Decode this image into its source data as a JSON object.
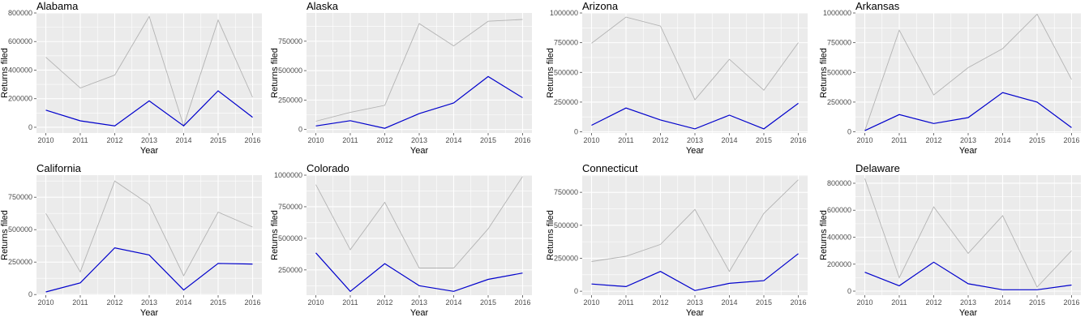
{
  "style": {
    "panel_bg": "#ebebeb",
    "grid_major": "#ffffff",
    "tick_color": "#4d4d4d",
    "series_colors": {
      "gray": "#b3b3b3",
      "blue": "#0000cc"
    }
  },
  "chart_data": [
    {
      "type": "line",
      "title": "Alabama",
      "xlabel": "Year",
      "ylabel": "Returns filed",
      "x": [
        2010,
        2011,
        2012,
        2013,
        2014,
        2015,
        2016
      ],
      "ylim": [
        -40000,
        800000
      ],
      "yticks": [
        0,
        200000,
        400000,
        600000,
        800000
      ],
      "ytick_labels": [
        "0",
        "200000",
        "400000",
        "600000",
        "800000"
      ],
      "grid": true,
      "series": [
        {
          "color": "gray",
          "values": [
            490000,
            275000,
            365000,
            775000,
            10000,
            750000,
            210000
          ]
        },
        {
          "color": "blue",
          "values": [
            120000,
            45000,
            10000,
            185000,
            10000,
            255000,
            70000
          ]
        }
      ]
    },
    {
      "type": "line",
      "title": "Alaska",
      "xlabel": "Year",
      "ylabel": "Returns filed",
      "x": [
        2010,
        2011,
        2012,
        2013,
        2014,
        2015,
        2016
      ],
      "ylim": [
        -30000,
        990000
      ],
      "yticks": [
        0,
        250000,
        500000,
        750000
      ],
      "ytick_labels": [
        "0",
        "250000",
        "500000",
        "750000"
      ],
      "grid": true,
      "series": [
        {
          "color": "gray",
          "values": [
            70000,
            145000,
            205000,
            900000,
            710000,
            920000,
            935000
          ]
        },
        {
          "color": "blue",
          "values": [
            30000,
            75000,
            10000,
            135000,
            225000,
            450000,
            270000
          ]
        }
      ]
    },
    {
      "type": "line",
      "title": "Arizona",
      "xlabel": "Year",
      "ylabel": "Returns filed",
      "x": [
        2010,
        2011,
        2012,
        2013,
        2014,
        2015,
        2016
      ],
      "ylim": [
        -10000,
        1000000
      ],
      "yticks": [
        0,
        250000,
        500000,
        750000,
        1000000
      ],
      "ytick_labels": [
        "0",
        "250000",
        "500000",
        "750000",
        "1000000"
      ],
      "grid": true,
      "series": [
        {
          "color": "gray",
          "values": [
            745000,
            965000,
            890000,
            270000,
            610000,
            350000,
            750000
          ]
        },
        {
          "color": "blue",
          "values": [
            55000,
            200000,
            100000,
            25000,
            140000,
            25000,
            240000
          ]
        }
      ]
    },
    {
      "type": "line",
      "title": "Arkansas",
      "xlabel": "Year",
      "ylabel": "Returns filed",
      "x": [
        2010,
        2011,
        2012,
        2013,
        2014,
        2015,
        2016
      ],
      "ylim": [
        -10000,
        1000000
      ],
      "yticks": [
        0,
        250000,
        500000,
        750000,
        1000000
      ],
      "ytick_labels": [
        "0",
        "250000",
        "500000",
        "750000",
        "1000000"
      ],
      "grid": true,
      "series": [
        {
          "color": "gray",
          "values": [
            10000,
            855000,
            310000,
            540000,
            700000,
            990000,
            440000
          ]
        },
        {
          "color": "blue",
          "values": [
            10000,
            145000,
            70000,
            120000,
            330000,
            250000,
            35000
          ]
        }
      ]
    },
    {
      "type": "line",
      "title": "California",
      "xlabel": "Year",
      "ylabel": "Returns filed",
      "x": [
        2010,
        2011,
        2012,
        2013,
        2014,
        2015,
        2016
      ],
      "ylim": [
        -5000,
        920000
      ],
      "yticks": [
        0,
        250000,
        500000,
        750000
      ],
      "ytick_labels": [
        "0",
        "250000",
        "500000",
        "750000"
      ],
      "grid": true,
      "series": [
        {
          "color": "gray",
          "values": [
            625000,
            175000,
            875000,
            695000,
            145000,
            635000,
            520000
          ]
        },
        {
          "color": "blue",
          "values": [
            20000,
            90000,
            360000,
            305000,
            35000,
            240000,
            235000
          ]
        }
      ]
    },
    {
      "type": "line",
      "title": "Colorado",
      "xlabel": "Year",
      "ylabel": "Returns filed",
      "x": [
        2010,
        2011,
        2012,
        2013,
        2014,
        2015,
        2016
      ],
      "ylim": [
        50000,
        1000000
      ],
      "yticks": [
        250000,
        500000,
        750000,
        1000000
      ],
      "ytick_labels": [
        "250000",
        "500000",
        "750000",
        "1000000"
      ],
      "grid": true,
      "series": [
        {
          "color": "gray",
          "values": [
            925000,
            410000,
            785000,
            265000,
            265000,
            575000,
            990000
          ]
        },
        {
          "color": "blue",
          "values": [
            385000,
            80000,
            300000,
            125000,
            80000,
            175000,
            225000
          ]
        }
      ]
    },
    {
      "type": "line",
      "title": "Connecticut",
      "xlabel": "Year",
      "ylabel": "Returns filed",
      "x": [
        2010,
        2011,
        2012,
        2013,
        2014,
        2015,
        2016
      ],
      "ylim": [
        -30000,
        880000
      ],
      "yticks": [
        0,
        250000,
        500000,
        750000
      ],
      "ytick_labels": [
        "0",
        "250000",
        "500000",
        "750000"
      ],
      "grid": true,
      "series": [
        {
          "color": "gray",
          "values": [
            225000,
            265000,
            355000,
            620000,
            150000,
            590000,
            845000
          ]
        },
        {
          "color": "blue",
          "values": [
            55000,
            35000,
            150000,
            5000,
            60000,
            80000,
            285000
          ]
        }
      ]
    },
    {
      "type": "line",
      "title": "Delaware",
      "xlabel": "Year",
      "ylabel": "Returns filed",
      "x": [
        2010,
        2011,
        2012,
        2013,
        2014,
        2015,
        2016
      ],
      "ylim": [
        -30000,
        860000
      ],
      "yticks": [
        0,
        200000,
        400000,
        600000,
        800000
      ],
      "ytick_labels": [
        "0",
        "200000",
        "400000",
        "600000",
        "800000"
      ],
      "grid": true,
      "series": [
        {
          "color": "gray",
          "values": [
            835000,
            100000,
            625000,
            280000,
            560000,
            30000,
            300000
          ]
        },
        {
          "color": "blue",
          "values": [
            140000,
            40000,
            215000,
            55000,
            10000,
            10000,
            45000
          ]
        }
      ]
    }
  ]
}
